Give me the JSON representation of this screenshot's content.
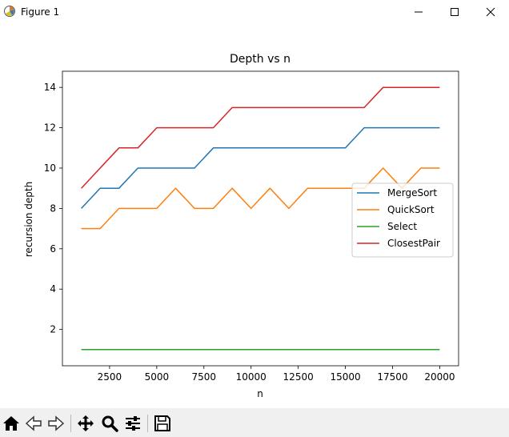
{
  "window": {
    "title": "Figure 1"
  },
  "toolbar": {
    "buttons": [
      {
        "name": "home-button",
        "icon": "home-icon"
      },
      {
        "name": "back-button",
        "icon": "arrow-left-icon"
      },
      {
        "name": "forward-button",
        "icon": "arrow-right-icon"
      },
      {
        "name": "pan-button",
        "icon": "move-icon"
      },
      {
        "name": "zoom-button",
        "icon": "magnifier-icon"
      },
      {
        "name": "configure-subplots-button",
        "icon": "sliders-icon"
      },
      {
        "name": "save-button",
        "icon": "floppy-disk-icon"
      }
    ]
  },
  "chart_data": {
    "type": "line",
    "title": "Depth vs n",
    "xlabel": "n",
    "ylabel": "recursion depth",
    "xlim": [
      0,
      21000
    ],
    "ylim": [
      0.2,
      14.8
    ],
    "xticks": [
      2500,
      5000,
      7500,
      10000,
      12500,
      15000,
      17500,
      20000
    ],
    "xtick_labels": [
      "2500",
      "5000",
      "7500",
      "10000",
      "12500",
      "15000",
      "17500",
      "20000"
    ],
    "yticks": [
      2,
      4,
      6,
      8,
      10,
      12,
      14
    ],
    "ytick_labels": [
      "2",
      "4",
      "6",
      "8",
      "10",
      "12",
      "14"
    ],
    "grid": false,
    "legend_position": "center-right",
    "x": [
      1000,
      2000,
      3000,
      4000,
      5000,
      6000,
      7000,
      8000,
      9000,
      10000,
      11000,
      12000,
      13000,
      14000,
      15000,
      16000,
      17000,
      18000,
      19000,
      20000
    ],
    "series": [
      {
        "name": "MergeSort",
        "color": "#1f77b4",
        "values": [
          8,
          9,
          9,
          10,
          10,
          10,
          10,
          11,
          11,
          11,
          11,
          11,
          11,
          11,
          11,
          12,
          12,
          12,
          12,
          12
        ]
      },
      {
        "name": "QuickSort",
        "color": "#ff7f0e",
        "values": [
          7,
          7,
          8,
          8,
          8,
          9,
          8,
          8,
          9,
          8,
          9,
          8,
          9,
          9,
          9,
          9,
          10,
          9,
          10,
          10
        ]
      },
      {
        "name": "Select",
        "color": "#2ca02c",
        "values": [
          1,
          1,
          1,
          1,
          1,
          1,
          1,
          1,
          1,
          1,
          1,
          1,
          1,
          1,
          1,
          1,
          1,
          1,
          1,
          1
        ]
      },
      {
        "name": "ClosestPair",
        "color": "#d62728",
        "values": [
          9,
          10,
          11,
          11,
          12,
          12,
          12,
          12,
          13,
          13,
          13,
          13,
          13,
          13,
          13,
          13,
          14,
          14,
          14,
          14
        ]
      }
    ]
  }
}
